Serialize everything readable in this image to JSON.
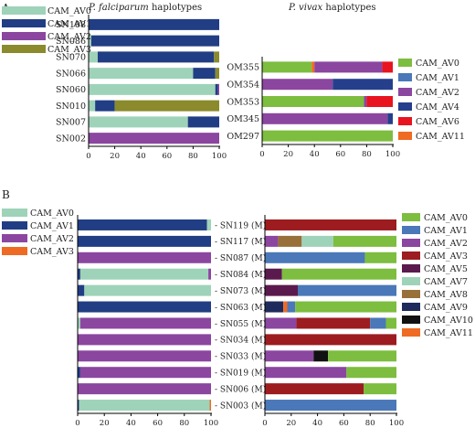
{
  "panels": {
    "a": "A",
    "b": "B"
  },
  "colors": {
    "CAM_AV0": "#7dbd3f",
    "CAM_AV1": "#4a78b8",
    "CAM_AV2": "#8b46a0",
    "CAM_AV3": "#9c1c20",
    "CAM_AV4": "#263f8c",
    "CAM_AV5": "#5a1a4d",
    "CAM_AV6": "#e8141f",
    "CAM_AV7": "#9ed3b9",
    "CAM_AV8": "#98703a",
    "CAM_AV9": "#1f2a5c",
    "CAM_AV10": "#111111",
    "CAM_AV11": "#ef6a23",
    "pf_AV0": "#9ed3b9",
    "pf_AV1": "#213d84",
    "pf_AV2": "#8b46a0",
    "pf_AV3": "#8b8a2c"
  },
  "chart_data": [
    {
      "type": "bar",
      "orientation": "horizontal",
      "stacked": true,
      "title_italic": "P. falciparum",
      "title_rest": " haplotypes",
      "categories": [
        "SN108",
        "SN086",
        "SN070",
        "SN066",
        "SN060",
        "SN010",
        "SN007",
        "SN002"
      ],
      "xlim": [
        0,
        100
      ],
      "xticks": [
        "0",
        "20",
        "40",
        "60",
        "80",
        "100"
      ],
      "legend": [
        "CAM_AV0",
        "CAM_AV1",
        "CAM_AV2",
        "CAM_AV3"
      ],
      "series": [
        {
          "name": "CAM_AV0",
          "color_key": "pf_AV0",
          "values": [
            0,
            2,
            7,
            80,
            97,
            5,
            76,
            0
          ]
        },
        {
          "name": "CAM_AV1",
          "color_key": "pf_AV1",
          "values": [
            100,
            98,
            89,
            17,
            2,
            15,
            24,
            0
          ]
        },
        {
          "name": "CAM_AV2",
          "color_key": "pf_AV2",
          "values": [
            0,
            0,
            0,
            0,
            1,
            0,
            0,
            100
          ]
        },
        {
          "name": "CAM_AV3",
          "color_key": "pf_AV3",
          "values": [
            0,
            0,
            4,
            3,
            0,
            80,
            0,
            0
          ]
        }
      ]
    },
    {
      "type": "bar",
      "orientation": "horizontal",
      "stacked": true,
      "title_italic": "P. vivax",
      "title_rest": " haplotypes",
      "categories": [
        "OM355",
        "OM354",
        "OM353",
        "OM345",
        "OM297"
      ],
      "xlim": [
        0,
        100
      ],
      "xticks": [
        "0",
        "20",
        "40",
        "60",
        "80",
        "100"
      ],
      "legend": [
        "CAM_AV0",
        "CAM_AV1",
        "CAM_AV2",
        "CAM_AV4",
        "CAM_AV6",
        "CAM_AV11"
      ],
      "series": [
        {
          "name": "CAM_AV0",
          "color_key": "CAM_AV0",
          "values": [
            38,
            0,
            78,
            0,
            100
          ]
        },
        {
          "name": "CAM_AV11",
          "color_key": "CAM_AV11",
          "values": [
            2,
            0,
            0,
            0,
            0
          ]
        },
        {
          "name": "CAM_AV2",
          "color_key": "CAM_AV2",
          "values": [
            52,
            54,
            2,
            96,
            0
          ]
        },
        {
          "name": "CAM_AV4",
          "color_key": "CAM_AV4",
          "values": [
            0,
            46,
            0,
            4,
            0
          ]
        },
        {
          "name": "CAM_AV6",
          "color_key": "CAM_AV6",
          "values": [
            8,
            0,
            20,
            0,
            0
          ]
        }
      ]
    },
    {
      "type": "bar",
      "orientation": "horizontal",
      "stacked": true,
      "categories": [
        "SN119 (M)",
        "SN117 (M)",
        "SN087 (M)",
        "SN084 (M)",
        "SN073 (M)",
        "SN063 (M)",
        "SN055 (M)",
        "SN034 (M)",
        "SN033 (M)",
        "SN019 (M)",
        "SN006 (M)",
        "SN003 (M)"
      ],
      "xlim": [
        0,
        100
      ],
      "xticks": [
        "0",
        "20",
        "40",
        "60",
        "80",
        "100"
      ],
      "legend": [
        "CAM_AV0",
        "CAM_AV1",
        "CAM_AV2",
        "CAM_AV3"
      ],
      "series": [
        {
          "name": "CAM_AV1",
          "color_key": "pf_AV1",
          "values": [
            97,
            100,
            0,
            2,
            5,
            100,
            0,
            0,
            0,
            2,
            0,
            1
          ]
        },
        {
          "name": "CAM_AV0",
          "color_key": "pf_AV0",
          "values": [
            3,
            0,
            0,
            96,
            95,
            0,
            2,
            0,
            0,
            0,
            0,
            98
          ]
        },
        {
          "name": "CAM_AV2",
          "color_key": "pf_AV2",
          "values": [
            0,
            0,
            100,
            2,
            0,
            0,
            98,
            100,
            100,
            98,
            100,
            0
          ]
        },
        {
          "name": "CAM_AV3",
          "color_key": "CAM_AV11",
          "values": [
            0,
            0,
            0,
            0,
            0,
            0,
            0,
            0,
            0,
            0,
            0,
            1
          ]
        }
      ]
    },
    {
      "type": "bar",
      "orientation": "horizontal",
      "stacked": true,
      "categories": [
        "SN119 (M)",
        "SN117 (M)",
        "SN087 (M)",
        "SN084 (M)",
        "SN073 (M)",
        "SN063 (M)",
        "SN055 (M)",
        "SN034 (M)",
        "SN033 (M)",
        "SN019 (M)",
        "SN006 (M)",
        "SN003 (M)"
      ],
      "xlim": [
        0,
        100
      ],
      "xticks": [
        "0",
        "20",
        "40",
        "60",
        "80",
        "100"
      ],
      "legend": [
        "CAM_AV0",
        "CAM_AV1",
        "CAM_AV2",
        "CAM_AV3",
        "CAM_AV5",
        "CAM_AV7",
        "CAM_AV8",
        "CAM_AV9",
        "CAM_AV10",
        "CAM_AV11"
      ],
      "series": [
        {
          "name": "CAM_AV3",
          "color_key": "CAM_AV3",
          "values": [
            100,
            0,
            0,
            0,
            0,
            0,
            0,
            0,
            0,
            0,
            0,
            0
          ]
        },
        {
          "name": "CAM_AV2",
          "color_key": "CAM_AV2",
          "values": [
            0,
            10,
            0,
            0,
            0,
            0,
            24,
            0,
            37,
            62,
            0,
            0
          ]
        },
        {
          "name": "CAM_AV8",
          "color_key": "CAM_AV8",
          "values": [
            0,
            18,
            0,
            0,
            0,
            0,
            0,
            0,
            0,
            0,
            0,
            0
          ]
        },
        {
          "name": "CAM_AV7",
          "color_key": "CAM_AV7",
          "values": [
            0,
            24,
            0,
            0,
            0,
            0,
            0,
            0,
            0,
            0,
            0,
            0
          ]
        },
        {
          "name": "CAM_AV1",
          "color_key": "CAM_AV1",
          "values": [
            0,
            0,
            76,
            0,
            0,
            0,
            0,
            0,
            0,
            0,
            0,
            100
          ]
        },
        {
          "name": "CAM_AV5",
          "color_key": "CAM_AV5",
          "values": [
            0,
            0,
            0,
            13,
            25,
            0,
            0,
            0,
            0,
            0,
            0,
            0
          ]
        },
        {
          "name": "CAM_AV9",
          "color_key": "CAM_AV9",
          "values": [
            0,
            0,
            0,
            0,
            0,
            14,
            0,
            0,
            0,
            0,
            0,
            0
          ]
        },
        {
          "name": "CAM_AV11",
          "color_key": "CAM_AV11",
          "values": [
            0,
            0,
            0,
            0,
            0,
            3,
            0,
            0,
            0,
            0,
            0,
            0
          ]
        },
        {
          "name": "CAM_AV1",
          "color_key": "CAM_AV1",
          "values": [
            0,
            0,
            0,
            0,
            75,
            6,
            0,
            0,
            0,
            0,
            0,
            0
          ]
        },
        {
          "name": "CAM_AV3",
          "color_key": "CAM_AV3",
          "values": [
            0,
            0,
            0,
            0,
            0,
            0,
            56,
            100,
            0,
            0,
            75,
            0
          ]
        },
        {
          "name": "CAM_AV1",
          "color_key": "CAM_AV1",
          "values": [
            0,
            0,
            0,
            0,
            0,
            0,
            12,
            0,
            0,
            0,
            0,
            0
          ]
        },
        {
          "name": "CAM_AV10",
          "color_key": "CAM_AV10",
          "values": [
            0,
            0,
            0,
            0,
            0,
            0,
            0,
            0,
            11,
            0,
            0,
            0
          ]
        },
        {
          "name": "CAM_AV0",
          "color_key": "CAM_AV0",
          "values": [
            0,
            48,
            24,
            87,
            0,
            77,
            8,
            0,
            52,
            38,
            25,
            0
          ]
        }
      ]
    }
  ]
}
